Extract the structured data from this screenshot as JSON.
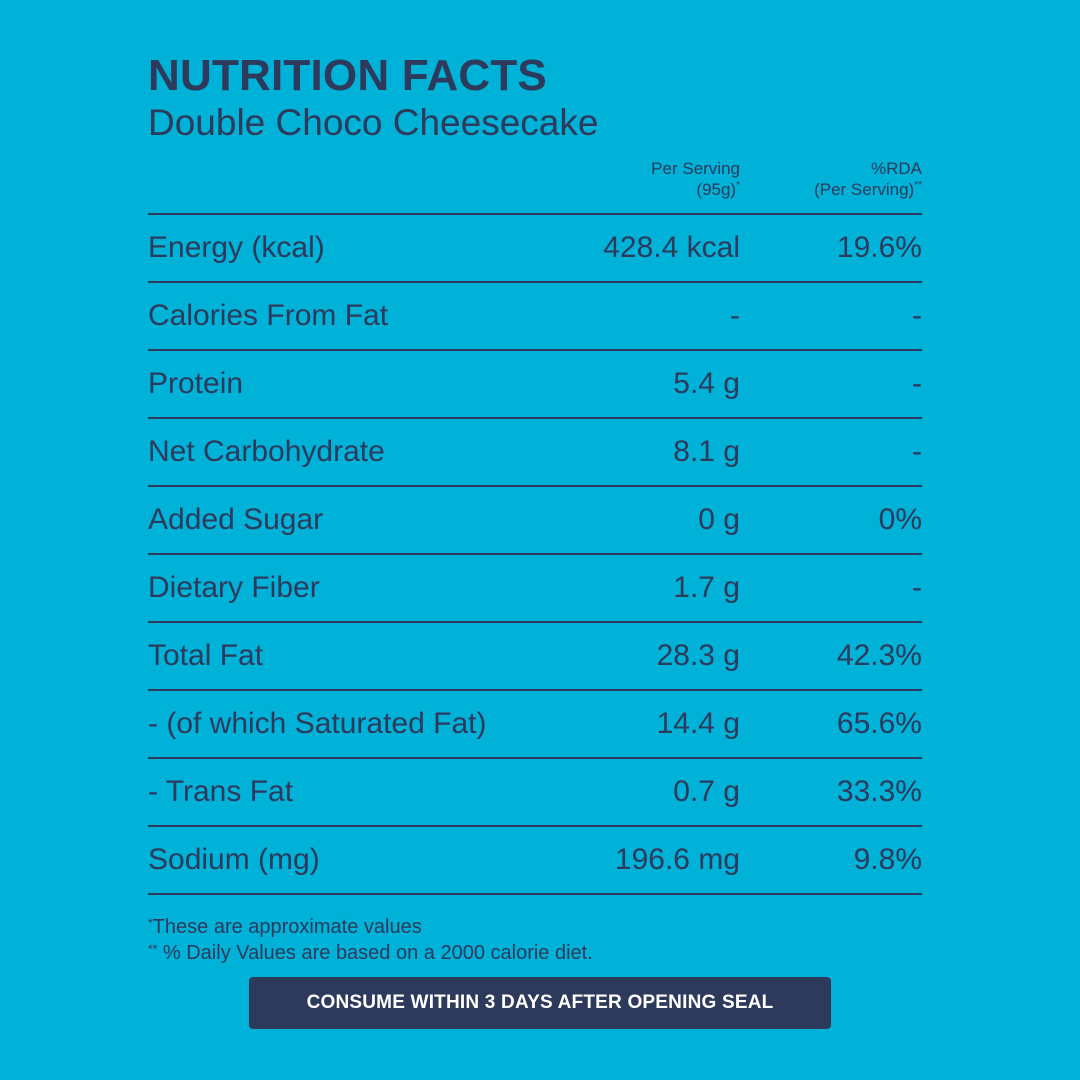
{
  "header": {
    "title": "NUTRITION FACTS",
    "subtitle": "Double Choco Cheesecake"
  },
  "columns": {
    "serving_line1": "Per Serving",
    "serving_line2": "(95g)",
    "serving_mark": "*",
    "rda_line1": "%RDA",
    "rda_line2": "(Per Serving)",
    "rda_mark": "**"
  },
  "rows": [
    {
      "label": "Energy (kcal)",
      "value": "428.4 kcal",
      "rda": "19.6%"
    },
    {
      "label": "Calories From Fat",
      "value": "-",
      "rda": "-"
    },
    {
      "label": "Protein",
      "value": "5.4 g",
      "rda": "-"
    },
    {
      "label": "Net Carbohydrate",
      "value": "8.1 g",
      "rda": "-"
    },
    {
      "label": "Added Sugar",
      "value": "0 g",
      "rda": "0%"
    },
    {
      "label": "Dietary Fiber",
      "value": "1.7 g",
      "rda": "-"
    },
    {
      "label": "Total Fat",
      "value": "28.3 g",
      "rda": "42.3%"
    },
    {
      "label": "- (of which Saturated Fat)",
      "value": "14.4 g",
      "rda": "65.6%"
    },
    {
      "label": "- Trans Fat",
      "value": "0.7 g",
      "rda": "33.3%"
    },
    {
      "label": "Sodium (mg)",
      "value": "196.6 mg",
      "rda": "9.8%"
    }
  ],
  "footnotes": {
    "note1_mark": "*",
    "note1": "These are approximate values",
    "note2_mark": "**",
    "note2": " % Daily Values are based on a 2000 calorie diet."
  },
  "banner": {
    "text": "CONSUME WITHIN 3 DAYS AFTER OPENING SEAL"
  },
  "colors": {
    "background": "#00b1d8",
    "text": "#2e3a5c",
    "banner_background": "#2e3a5c",
    "banner_text": "#ffffff"
  }
}
